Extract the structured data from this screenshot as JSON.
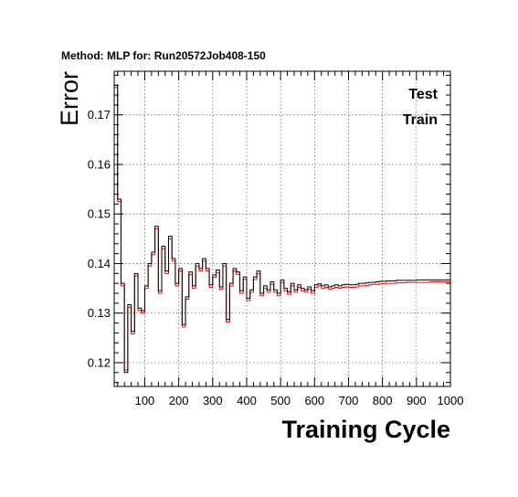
{
  "chart_data": {
    "type": "line",
    "title": "Method: MLP for: Run20572Job408-150",
    "xlabel": "Training Cycle",
    "ylabel": "Error",
    "xlim": [
      10,
      1000
    ],
    "ylim": [
      0.1152,
      0.1788
    ],
    "xticks": [
      100,
      200,
      300,
      400,
      500,
      600,
      700,
      800,
      900,
      1000
    ],
    "yticks": [
      0.12,
      0.13,
      0.14,
      0.15,
      0.16,
      0.17
    ],
    "grid": true,
    "legend_position": "top-right",
    "step": 10,
    "series": [
      {
        "name": "Test",
        "color": "#ff0000",
        "values": [
          0.1755,
          0.1525,
          0.1355,
          0.1185,
          0.1312,
          0.1258,
          0.1375,
          0.1305,
          0.13,
          0.135,
          0.1395,
          0.1418,
          0.147,
          0.134,
          0.143,
          0.138,
          0.145,
          0.1405,
          0.1355,
          0.1385,
          0.1272,
          0.1328,
          0.1378,
          0.135,
          0.1395,
          0.1385,
          0.1405,
          0.1385,
          0.1352,
          0.1372,
          0.1382,
          0.1348,
          0.1395,
          0.1282,
          0.1355,
          0.1385,
          0.1378,
          0.134,
          0.1368,
          0.1325,
          0.1342,
          0.1368,
          0.138,
          0.1335,
          0.135,
          0.1342,
          0.1358,
          0.1342,
          0.1335,
          0.1362,
          0.1345,
          0.1338,
          0.1355,
          0.1342,
          0.1352,
          0.1345,
          0.1342,
          0.1348,
          0.134,
          0.1352,
          0.1355,
          0.135,
          0.1352,
          0.1348,
          0.135,
          0.1352,
          0.135,
          0.1352,
          0.1353,
          0.1352,
          0.1352,
          0.1353,
          0.1355,
          0.1355,
          0.1356,
          0.1357,
          0.1358,
          0.1358,
          0.1359,
          0.1359,
          0.136,
          0.136,
          0.136,
          0.1361,
          0.1361,
          0.1361,
          0.1362,
          0.1362,
          0.1362,
          0.1362,
          0.1362,
          0.1362,
          0.1362,
          0.1363,
          0.1363,
          0.1363,
          0.1363,
          0.1363,
          0.1363
        ]
      },
      {
        "name": "Train",
        "color": "#000000",
        "values": [
          0.176,
          0.153,
          0.136,
          0.118,
          0.1317,
          0.1263,
          0.138,
          0.131,
          0.1305,
          0.1355,
          0.14,
          0.1423,
          0.1475,
          0.1345,
          0.1435,
          0.1385,
          0.1455,
          0.141,
          0.136,
          0.139,
          0.1277,
          0.1333,
          0.1383,
          0.1355,
          0.14,
          0.139,
          0.141,
          0.139,
          0.1357,
          0.1377,
          0.1387,
          0.1353,
          0.14,
          0.1287,
          0.136,
          0.139,
          0.1383,
          0.1345,
          0.1373,
          0.133,
          0.1347,
          0.1373,
          0.1385,
          0.134,
          0.1355,
          0.1347,
          0.1363,
          0.1347,
          0.134,
          0.1367,
          0.135,
          0.1343,
          0.136,
          0.1347,
          0.1357,
          0.135,
          0.1347,
          0.1353,
          0.1345,
          0.1357,
          0.1359,
          0.1355,
          0.1357,
          0.1353,
          0.1355,
          0.1357,
          0.1355,
          0.1357,
          0.1358,
          0.1357,
          0.1357,
          0.1358,
          0.136,
          0.136,
          0.1361,
          0.1362,
          0.1362,
          0.1363,
          0.1364,
          0.1364,
          0.1365,
          0.1365,
          0.1365,
          0.1366,
          0.1366,
          0.1366,
          0.1366,
          0.1366,
          0.1366,
          0.1367,
          0.1367,
          0.1367,
          0.1367,
          0.1367,
          0.1367,
          0.1367,
          0.1367,
          0.1367,
          0.1367
        ]
      }
    ]
  }
}
